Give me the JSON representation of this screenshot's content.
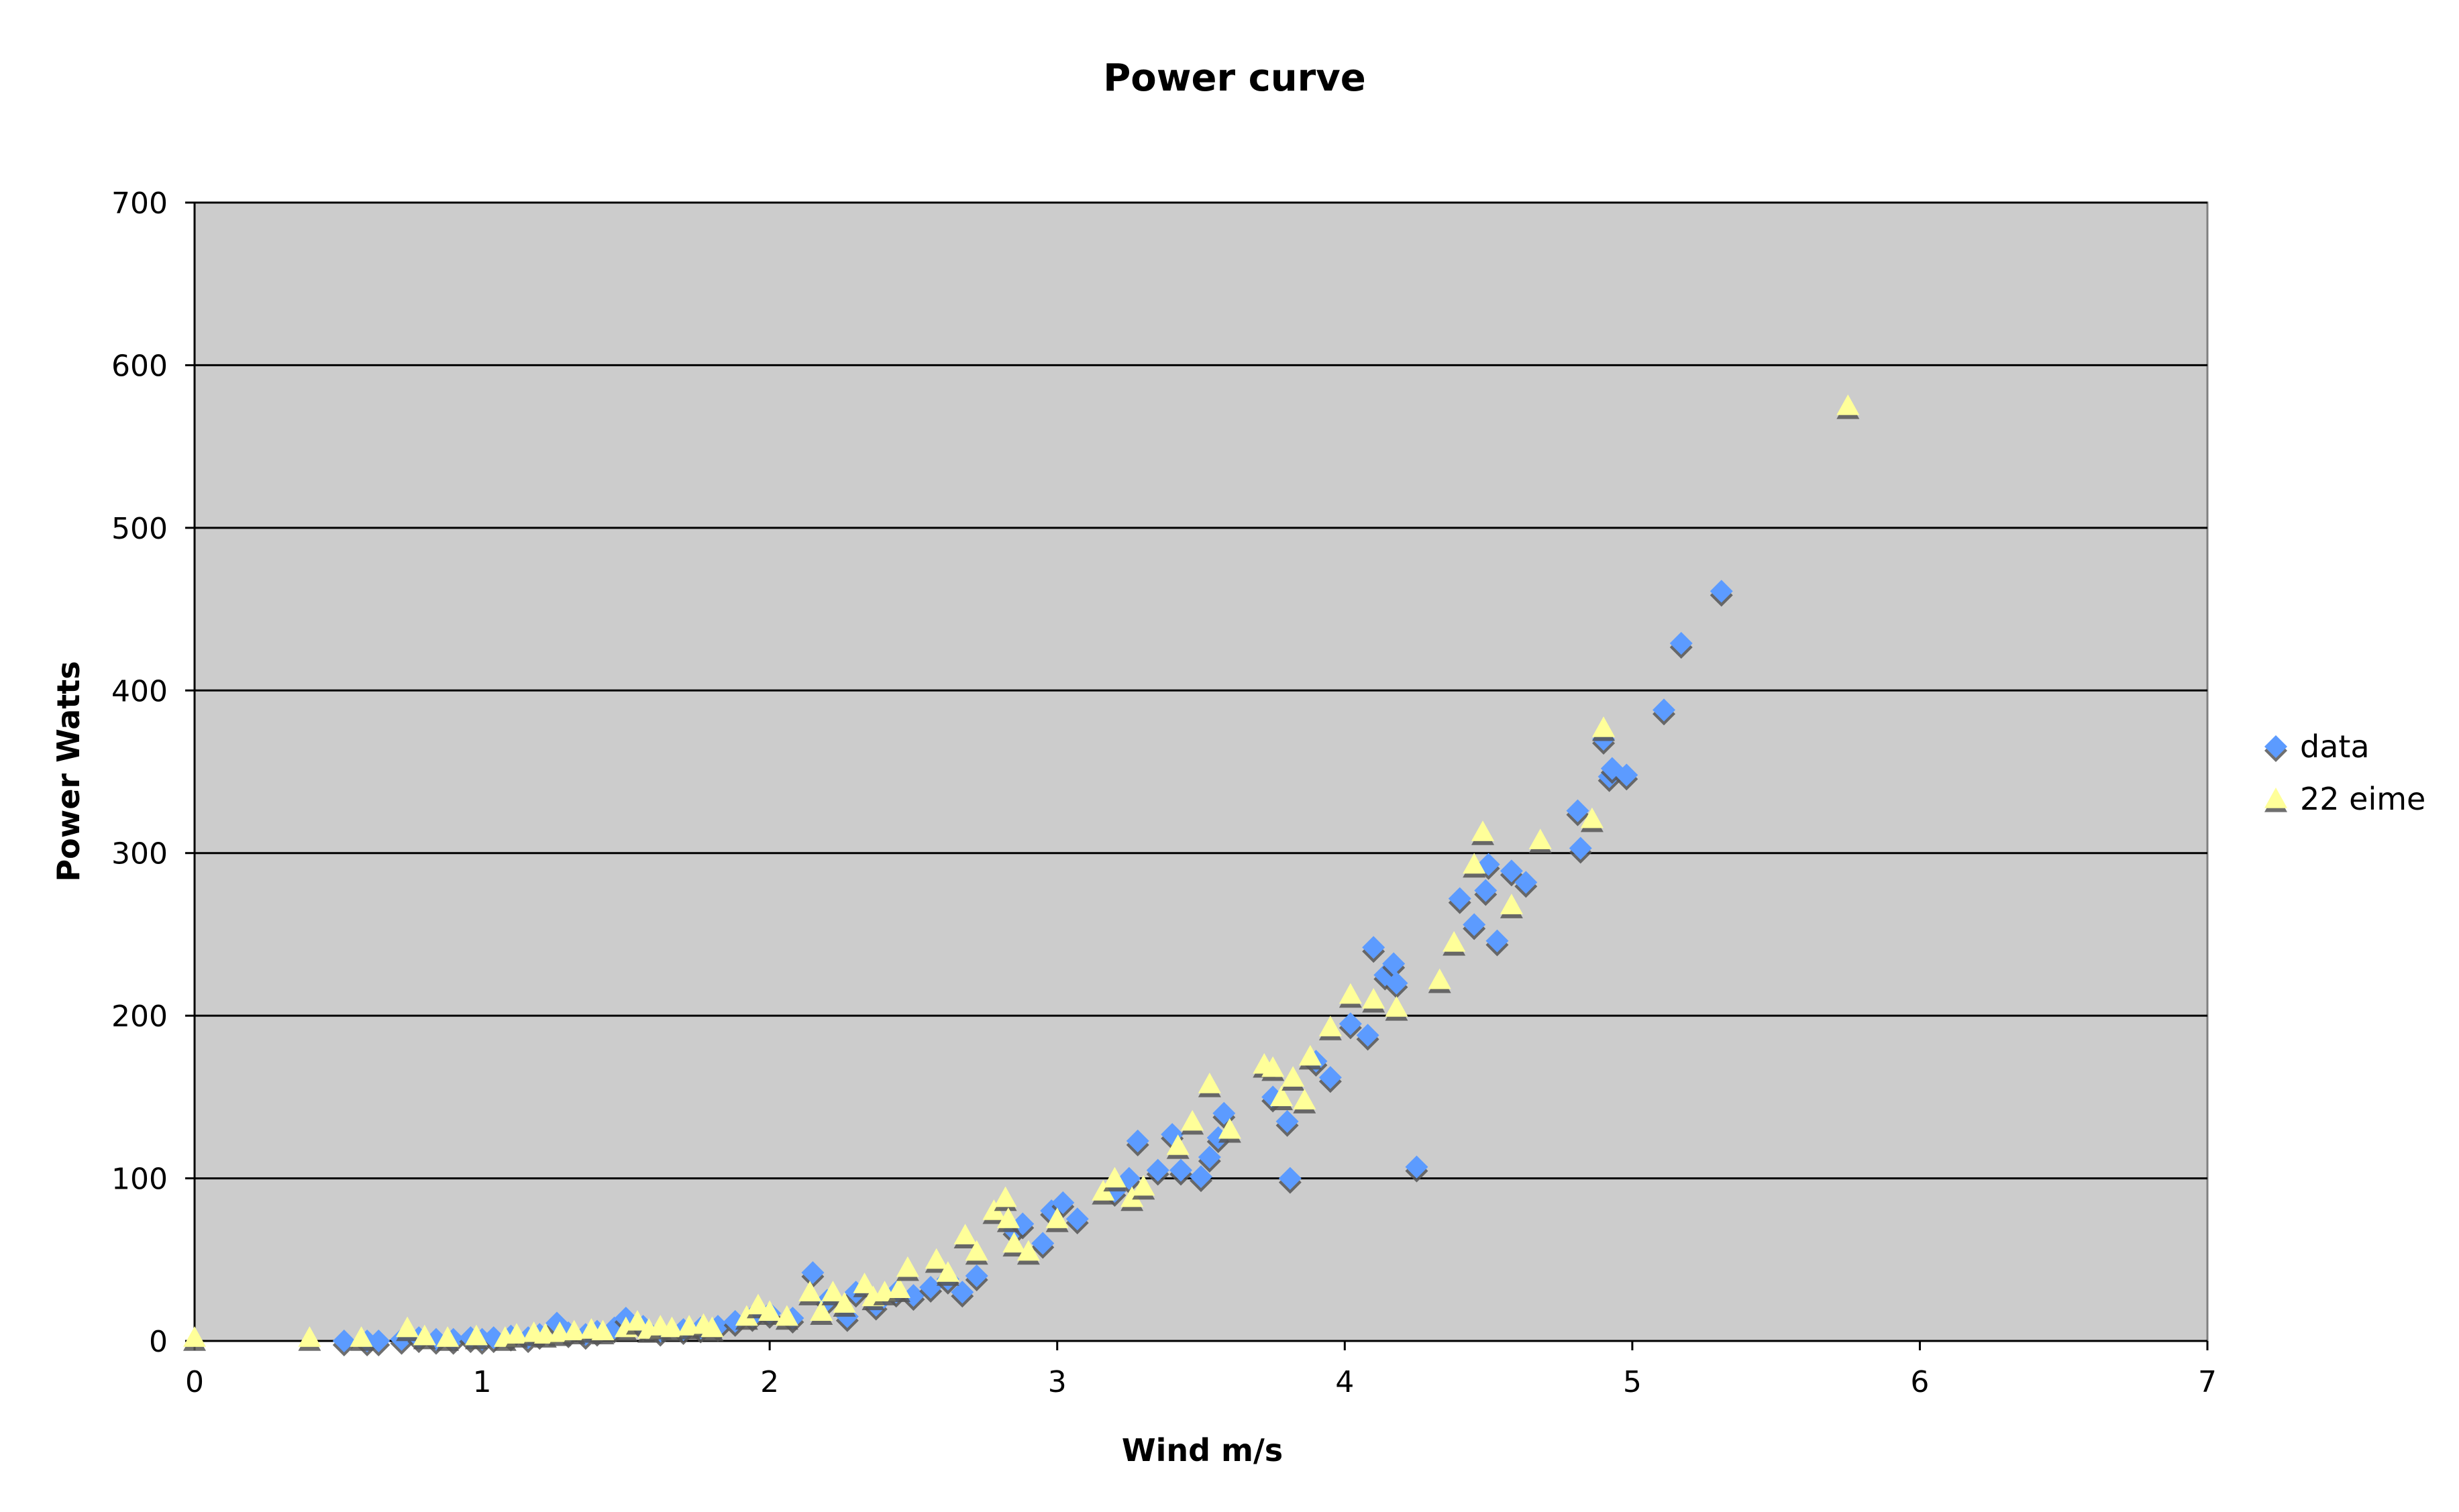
{
  "chart_data": {
    "type": "scatter",
    "title": "Power curve",
    "xlabel": "Wind m/s",
    "ylabel": "Power Watts",
    "xlim": [
      0,
      7
    ],
    "ylim": [
      0,
      700
    ],
    "x_ticks": [
      "0",
      "1",
      "2",
      "3",
      "4",
      "5",
      "6",
      "7"
    ],
    "y_ticks": [
      "0",
      "100",
      "200",
      "300",
      "400",
      "500",
      "600",
      "700"
    ],
    "grid": "horizontal major gridlines",
    "plot_background": "#cccccc",
    "legend_position": "right",
    "series": [
      {
        "name": "data",
        "marker": "diamond",
        "color": "#5b9bff",
        "points": [
          [
            0.52,
            0
          ],
          [
            0.6,
            0
          ],
          [
            0.64,
            0
          ],
          [
            0.72,
            1
          ],
          [
            0.78,
            2
          ],
          [
            0.84,
            1
          ],
          [
            0.9,
            1
          ],
          [
            0.96,
            2
          ],
          [
            1.0,
            1
          ],
          [
            1.04,
            2
          ],
          [
            1.1,
            3
          ],
          [
            1.16,
            2
          ],
          [
            1.2,
            4
          ],
          [
            1.26,
            11
          ],
          [
            1.3,
            5
          ],
          [
            1.36,
            4
          ],
          [
            1.4,
            6
          ],
          [
            1.46,
            8
          ],
          [
            1.5,
            14
          ],
          [
            1.56,
            9
          ],
          [
            1.62,
            6
          ],
          [
            1.7,
            7
          ],
          [
            1.76,
            8
          ],
          [
            1.82,
            9
          ],
          [
            1.88,
            12
          ],
          [
            1.94,
            15
          ],
          [
            2.0,
            17
          ],
          [
            2.08,
            14
          ],
          [
            2.15,
            42
          ],
          [
            2.2,
            25
          ],
          [
            2.27,
            15
          ],
          [
            2.3,
            30
          ],
          [
            2.37,
            22
          ],
          [
            2.44,
            30
          ],
          [
            2.5,
            28
          ],
          [
            2.56,
            33
          ],
          [
            2.62,
            38
          ],
          [
            2.67,
            30
          ],
          [
            2.72,
            40
          ],
          [
            2.85,
            68
          ],
          [
            2.88,
            72
          ],
          [
            2.95,
            60
          ],
          [
            2.98,
            80
          ],
          [
            3.02,
            85
          ],
          [
            3.07,
            75
          ],
          [
            3.2,
            92
          ],
          [
            3.25,
            100
          ],
          [
            3.28,
            123
          ],
          [
            3.35,
            105
          ],
          [
            3.4,
            127
          ],
          [
            3.43,
            105
          ],
          [
            3.5,
            101
          ],
          [
            3.53,
            113
          ],
          [
            3.56,
            125
          ],
          [
            3.58,
            140
          ],
          [
            3.75,
            150
          ],
          [
            3.8,
            135
          ],
          [
            3.81,
            100
          ],
          [
            3.9,
            172
          ],
          [
            3.95,
            162
          ],
          [
            4.02,
            195
          ],
          [
            4.08,
            188
          ],
          [
            4.1,
            242
          ],
          [
            4.14,
            225
          ],
          [
            4.17,
            232
          ],
          [
            4.18,
            220
          ],
          [
            4.25,
            107
          ],
          [
            4.4,
            272
          ],
          [
            4.45,
            256
          ],
          [
            4.49,
            277
          ],
          [
            4.5,
            293
          ],
          [
            4.53,
            246
          ],
          [
            4.58,
            289
          ],
          [
            4.63,
            282
          ],
          [
            4.81,
            326
          ],
          [
            4.82,
            303
          ],
          [
            4.9,
            370
          ],
          [
            4.92,
            347
          ],
          [
            4.93,
            352
          ],
          [
            4.98,
            348
          ],
          [
            5.11,
            388
          ],
          [
            5.17,
            429
          ],
          [
            5.31,
            461
          ]
        ]
      },
      {
        "name": "22 eime",
        "marker": "triangle",
        "color": "#ffff99",
        "points": [
          [
            0.0,
            2
          ],
          [
            0.4,
            2
          ],
          [
            0.58,
            2
          ],
          [
            0.74,
            8
          ],
          [
            0.8,
            3
          ],
          [
            0.88,
            2
          ],
          [
            0.98,
            3
          ],
          [
            1.08,
            2
          ],
          [
            1.12,
            4
          ],
          [
            1.18,
            5
          ],
          [
            1.22,
            4
          ],
          [
            1.27,
            5
          ],
          [
            1.32,
            6
          ],
          [
            1.38,
            7
          ],
          [
            1.42,
            6
          ],
          [
            1.5,
            8
          ],
          [
            1.54,
            12
          ],
          [
            1.58,
            7
          ],
          [
            1.62,
            9
          ],
          [
            1.66,
            8
          ],
          [
            1.72,
            9
          ],
          [
            1.77,
            10
          ],
          [
            1.8,
            8
          ],
          [
            1.92,
            15
          ],
          [
            1.96,
            22
          ],
          [
            2.0,
            18
          ],
          [
            2.06,
            15
          ],
          [
            2.14,
            30
          ],
          [
            2.18,
            18
          ],
          [
            2.22,
            30
          ],
          [
            2.26,
            23
          ],
          [
            2.33,
            35
          ],
          [
            2.36,
            27
          ],
          [
            2.4,
            30
          ],
          [
            2.45,
            32
          ],
          [
            2.48,
            45
          ],
          [
            2.58,
            50
          ],
          [
            2.62,
            42
          ],
          [
            2.68,
            65
          ],
          [
            2.72,
            55
          ],
          [
            2.78,
            80
          ],
          [
            2.82,
            88
          ],
          [
            2.83,
            75
          ],
          [
            2.85,
            60
          ],
          [
            2.9,
            55
          ],
          [
            3.0,
            75
          ],
          [
            3.16,
            92
          ],
          [
            3.2,
            100
          ],
          [
            3.26,
            88
          ],
          [
            3.3,
            95
          ],
          [
            3.42,
            120
          ],
          [
            3.47,
            135
          ],
          [
            3.53,
            158
          ],
          [
            3.6,
            130
          ],
          [
            3.72,
            170
          ],
          [
            3.75,
            168
          ],
          [
            3.78,
            150
          ],
          [
            3.82,
            162
          ],
          [
            3.86,
            148
          ],
          [
            3.88,
            175
          ],
          [
            3.95,
            193
          ],
          [
            4.02,
            213
          ],
          [
            4.1,
            210
          ],
          [
            4.18,
            205
          ],
          [
            4.33,
            222
          ],
          [
            4.38,
            245
          ],
          [
            4.45,
            293
          ],
          [
            4.48,
            313
          ],
          [
            4.58,
            268
          ],
          [
            4.68,
            308
          ],
          [
            4.86,
            321
          ],
          [
            4.9,
            377
          ],
          [
            5.75,
            575
          ]
        ]
      }
    ]
  }
}
